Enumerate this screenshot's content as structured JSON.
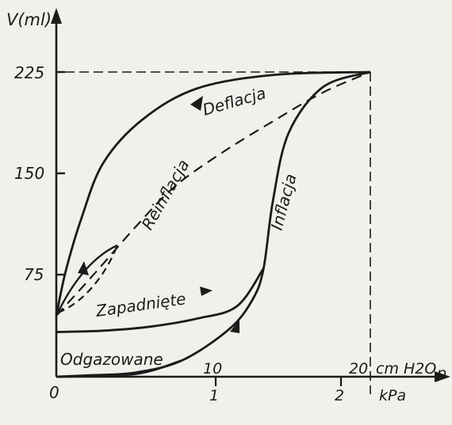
{
  "chart_data": {
    "type": "line",
    "y_axis": {
      "label": "V(ml)",
      "ticks": [
        "225",
        "150",
        "75"
      ],
      "range": [
        0,
        225
      ]
    },
    "x_axis": {
      "cm_label": "cm H2O",
      "cm_ticks": [
        "10",
        "20"
      ],
      "p_label": "p",
      "kpa_label": "kPa",
      "kpa_ticks": [
        "1",
        "2"
      ],
      "origin_label": "0",
      "range_cmH2O": [
        0,
        20
      ]
    },
    "curves": [
      {
        "name": "Deflacja",
        "style": "solid",
        "points": [
          [
            20,
            225
          ],
          [
            14,
            223
          ],
          [
            9,
            213
          ],
          [
            5.5,
            190
          ],
          [
            3,
            158
          ],
          [
            1.6,
            117
          ],
          [
            0.6,
            78
          ],
          [
            0,
            45
          ]
        ]
      },
      {
        "name": "Reinflacja",
        "style": "dashed",
        "points": [
          [
            0,
            45
          ],
          [
            2.5,
            77
          ],
          [
            5,
            110
          ],
          [
            7.5,
            140
          ],
          [
            10.5,
            165
          ],
          [
            14,
            190
          ],
          [
            17,
            210
          ],
          [
            20,
            225
          ]
        ]
      },
      {
        "name": "Inflacja",
        "style": "solid",
        "points": [
          [
            0,
            0
          ],
          [
            2,
            1
          ],
          [
            5,
            3
          ],
          [
            8,
            12
          ],
          [
            11,
            35
          ],
          [
            12.5,
            57
          ],
          [
            13.2,
            80
          ],
          [
            13.8,
            130
          ],
          [
            14.8,
            180
          ],
          [
            17,
            214
          ],
          [
            20,
            225
          ]
        ]
      },
      {
        "name": "Zapadnięte",
        "style": "solid",
        "points": [
          [
            0,
            33
          ],
          [
            3,
            34
          ],
          [
            6,
            37
          ],
          [
            9,
            43
          ],
          [
            11.5,
            52
          ],
          [
            13.2,
            80
          ]
        ]
      },
      {
        "name": "Odgazowane",
        "style": "solid",
        "points": [
          [
            0,
            0
          ],
          [
            5,
            2
          ],
          [
            8,
            12
          ]
        ]
      }
    ],
    "grid": false,
    "legend": "none"
  }
}
